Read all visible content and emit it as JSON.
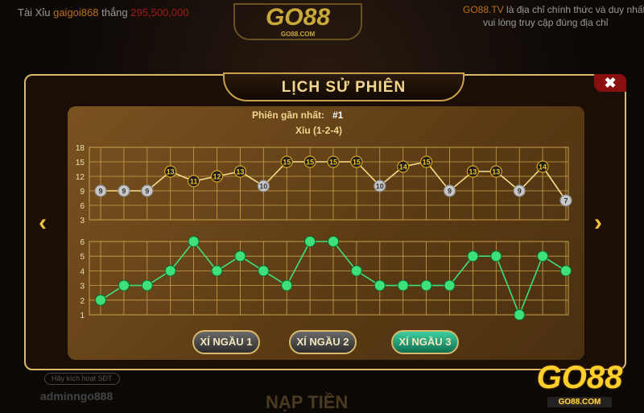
{
  "ticker": {
    "game": "Tài Xỉu",
    "user": "gaigoi868",
    "verb": "thắng",
    "amount": "295,500,000"
  },
  "news": {
    "brand": "GO88.TV",
    "line1": "là địa chỉ chính thức và duy nhất",
    "line2": "vui lòng truy cập đúng địa chỉ"
  },
  "logo": {
    "text": "GO88",
    "domain": "GO88.COM"
  },
  "modal": {
    "title": "LỊCH SỬ PHIÊN",
    "close": "✖",
    "prev": "‹",
    "next": "›",
    "latest_label": "Phiên gần nhất:",
    "latest_value": "#1",
    "latest_result": "Xỉu (1-2-4)"
  },
  "buttons": [
    {
      "label": "XÍ NGẦU 1",
      "active": false
    },
    {
      "label": "XÍ NGẦU 2",
      "active": false
    },
    {
      "label": "XÍ NGẦU 3",
      "active": true
    }
  ],
  "background": {
    "account": "adminngo888",
    "activate": "Hãy kích hoạt SĐT",
    "deposit": "NẠP TIỀN"
  },
  "colors": {
    "line_sum": "#f5e08a",
    "tai_marker": "#1e1e1e",
    "xiu_marker": "#c8c8c8",
    "dice_line": "#3ee07a",
    "grid": "#c9a24a"
  },
  "chart_data": [
    {
      "type": "line",
      "yticks": [
        18,
        15,
        12,
        9,
        6,
        3
      ],
      "ylim": [
        3,
        18
      ],
      "values": [
        9,
        9,
        9,
        13,
        11,
        12,
        13,
        10,
        15,
        15,
        15,
        15,
        10,
        14,
        15,
        9,
        13,
        13,
        9,
        14,
        7
      ]
    },
    {
      "type": "line",
      "yticks": [
        6,
        5,
        4,
        3,
        2,
        1
      ],
      "ylim": [
        1,
        6
      ],
      "values": [
        2,
        3,
        3,
        4,
        6,
        4,
        5,
        4,
        3,
        6,
        6,
        4,
        3,
        3,
        3,
        3,
        5,
        5,
        1,
        5,
        4
      ]
    }
  ]
}
